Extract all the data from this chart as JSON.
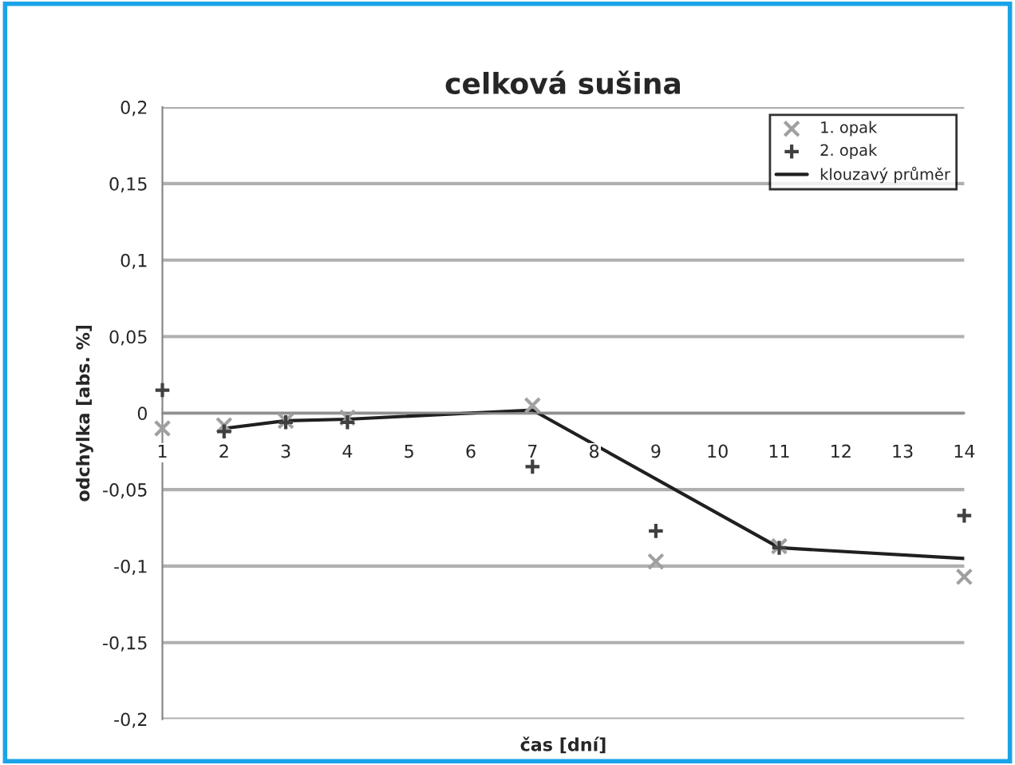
{
  "chart_data": {
    "type": "scatter",
    "title": "celková sušina",
    "xlabel": "čas [dní]",
    "ylabel": "odchylka [abs. %]",
    "xlim": [
      1,
      14
    ],
    "xticks": [
      1,
      2,
      3,
      4,
      5,
      6,
      7,
      8,
      9,
      10,
      11,
      12,
      13,
      14
    ],
    "ylim": [
      -0.2,
      0.2
    ],
    "yticks": [
      {
        "value": -0.2,
        "label": "-0,2"
      },
      {
        "value": -0.15,
        "label": "-0,15"
      },
      {
        "value": -0.1,
        "label": "-0,1"
      },
      {
        "value": -0.05,
        "label": "-0,05"
      },
      {
        "value": 0,
        "label": "0"
      },
      {
        "value": 0.05,
        "label": "0,05"
      },
      {
        "value": 0.1,
        "label": "0,1"
      },
      {
        "value": 0.15,
        "label": "0,15"
      },
      {
        "value": 0.2,
        "label": "0,2"
      }
    ],
    "grid": "y",
    "legend": "top right",
    "series": [
      {
        "name": "1. opak",
        "marker": "cross",
        "color": "#a0a0a0",
        "x": [
          1,
          2,
          3,
          4,
          7,
          9,
          11,
          14
        ],
        "values": [
          -0.01,
          -0.008,
          -0.005,
          -0.003,
          0.005,
          -0.097,
          -0.087,
          -0.107
        ]
      },
      {
        "name": "2. opak",
        "marker": "plus",
        "color": "#404040",
        "x": [
          1,
          2,
          3,
          4,
          7,
          9,
          11,
          14
        ],
        "values": [
          0.015,
          -0.012,
          -0.006,
          -0.006,
          -0.035,
          -0.077,
          -0.088,
          -0.067
        ]
      },
      {
        "name": "klouzavý průměr",
        "type": "line",
        "marker": "none",
        "line_style": "solid",
        "color": "#202020",
        "x": [
          2,
          3,
          4,
          7,
          11,
          14
        ],
        "values": [
          -0.01,
          -0.005,
          -0.004,
          0.002,
          -0.088,
          -0.095
        ]
      }
    ]
  }
}
